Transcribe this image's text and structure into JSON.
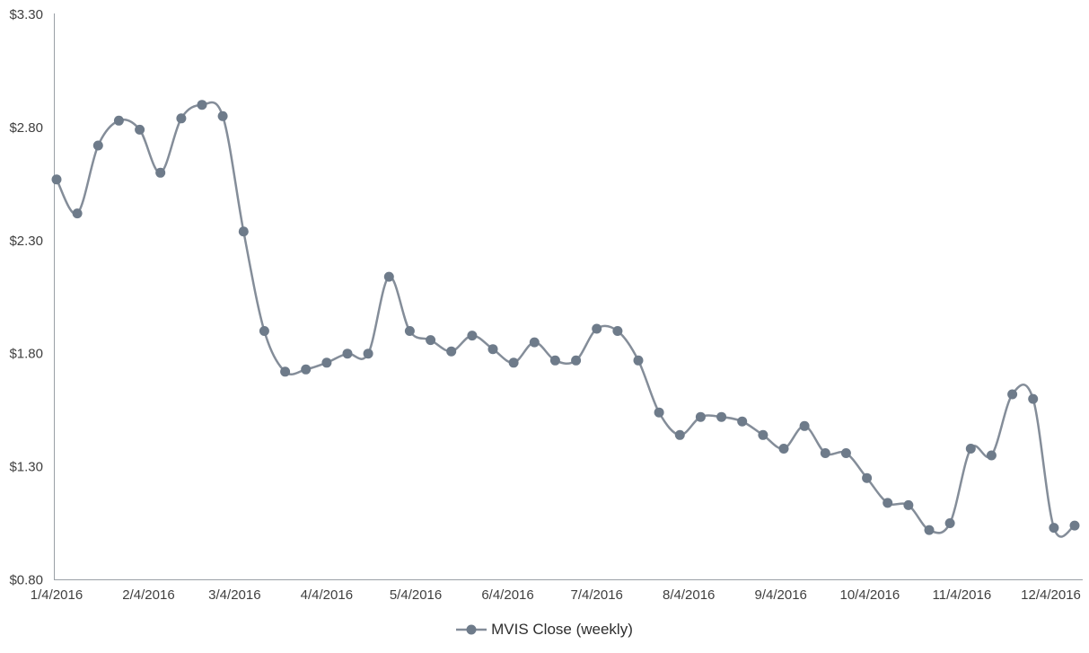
{
  "page": {
    "background": "#ffffff"
  },
  "chart_data": {
    "type": "line",
    "title": "",
    "legend": "MVIS Close (weekly)",
    "legend_position": "bottom",
    "smoothed": true,
    "grid": "off",
    "x": [
      "1/4/2016",
      "1/11/2016",
      "1/18/2016",
      "1/25/2016",
      "2/1/2016",
      "2/8/2016",
      "2/15/2016",
      "2/22/2016",
      "2/29/2016",
      "3/7/2016",
      "3/14/2016",
      "3/21/2016",
      "3/28/2016",
      "4/4/2016",
      "4/11/2016",
      "4/18/2016",
      "4/25/2016",
      "5/2/2016",
      "5/9/2016",
      "5/16/2016",
      "5/23/2016",
      "5/30/2016",
      "6/6/2016",
      "6/13/2016",
      "6/20/2016",
      "6/27/2016",
      "7/4/2016",
      "7/11/2016",
      "7/18/2016",
      "7/25/2016",
      "8/1/2016",
      "8/8/2016",
      "8/15/2016",
      "8/22/2016",
      "8/29/2016",
      "9/5/2016",
      "9/12/2016",
      "9/19/2016",
      "9/26/2016",
      "10/3/2016",
      "10/10/2016",
      "10/17/2016",
      "10/24/2016",
      "10/31/2016",
      "11/7/2016",
      "11/14/2016",
      "11/21/2016",
      "11/28/2016",
      "12/5/2016",
      "12/12/2016"
    ],
    "series": [
      {
        "name": "MVIS Close (weekly)",
        "values": [
          2.57,
          2.42,
          2.72,
          2.83,
          2.79,
          2.6,
          2.84,
          2.9,
          2.85,
          2.34,
          1.9,
          1.72,
          1.73,
          1.76,
          1.8,
          1.8,
          2.14,
          1.9,
          1.86,
          1.81,
          1.88,
          1.82,
          1.76,
          1.85,
          1.77,
          1.77,
          1.91,
          1.9,
          1.77,
          1.54,
          1.44,
          1.52,
          1.52,
          1.5,
          1.44,
          1.38,
          1.48,
          1.36,
          1.36,
          1.25,
          1.14,
          1.13,
          1.02,
          1.05,
          1.38,
          1.35,
          1.62,
          1.6,
          1.03,
          1.04
        ]
      }
    ],
    "y_axis": {
      "min": 0.8,
      "max": 3.3,
      "tick_step": 0.5,
      "ticks": [
        "$3.30",
        "$2.80",
        "$2.30",
        "$1.80",
        "$1.30",
        "$0.80"
      ],
      "format": "$0.00"
    },
    "x_axis": {
      "tick_labels": [
        "1/4/2016",
        "2/4/2016",
        "3/4/2016",
        "4/4/2016",
        "5/4/2016",
        "6/4/2016",
        "7/4/2016",
        "8/4/2016",
        "9/4/2016",
        "10/4/2016",
        "11/4/2016",
        "12/4/2016"
      ]
    },
    "colors": {
      "line": "#848d99",
      "marker": "#6e7b8a",
      "axis": "#9aa0a6",
      "tick_text": "#3f3f3f",
      "legend_text": "#2e2e2e"
    }
  }
}
